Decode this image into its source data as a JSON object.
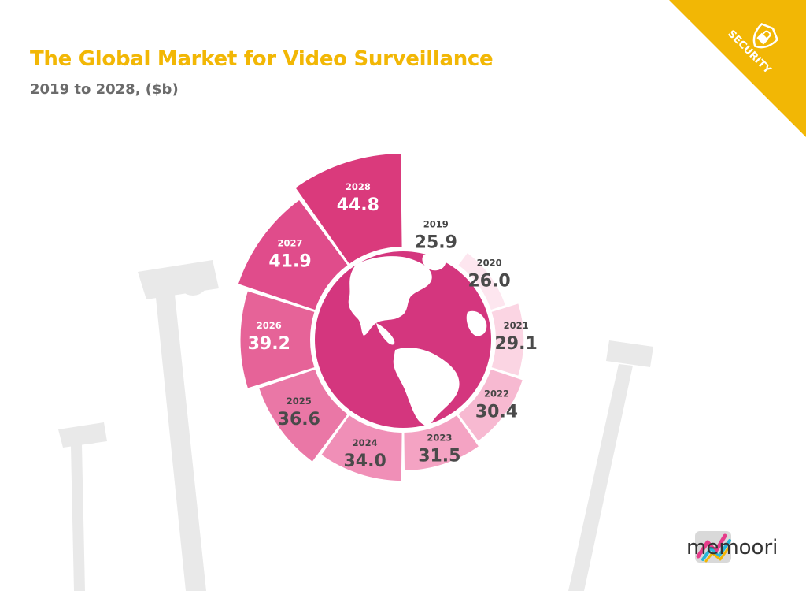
{
  "header": {
    "title": "The Global Market for Video Surveillance",
    "subtitle": "2019 to 2028, ($b)"
  },
  "badge": {
    "label": "SECURITY",
    "icon": "shield-lock-icon",
    "color": "#f2b705"
  },
  "brand": {
    "name": "memoori",
    "icon": "memoori-logo-icon"
  },
  "colors": {
    "title": "#f2b705",
    "center_globe": "#d4367e",
    "label_dark": "#444444",
    "label_light": "#ffffff"
  },
  "chart_data": {
    "type": "pie",
    "subtype": "radial-donut (rose)",
    "title": "The Global Market for Video Surveillance",
    "subtitle": "2019 to 2028, ($b)",
    "unit": "$b",
    "categories": [
      "2019",
      "2020",
      "2021",
      "2022",
      "2023",
      "2024",
      "2025",
      "2026",
      "2027",
      "2028"
    ],
    "values": [
      25.9,
      26.0,
      29.1,
      30.4,
      31.5,
      34.0,
      36.6,
      39.2,
      41.9,
      44.8
    ],
    "labels": [
      "25.9",
      "26.0",
      "29.1",
      "30.4",
      "31.5",
      "34.0",
      "36.6",
      "39.2",
      "41.9",
      "44.8"
    ],
    "colors": [
      "#ffffff",
      "#fde6ef",
      "#fbd5e3",
      "#f7b9d1",
      "#f4a3c3",
      "#f08fb7",
      "#ea77a6",
      "#e66398",
      "#e04c8b",
      "#da3a7c"
    ],
    "label_colors": [
      "dark",
      "dark",
      "dark",
      "dark",
      "dark",
      "dark",
      "dark",
      "light",
      "light",
      "light"
    ]
  }
}
